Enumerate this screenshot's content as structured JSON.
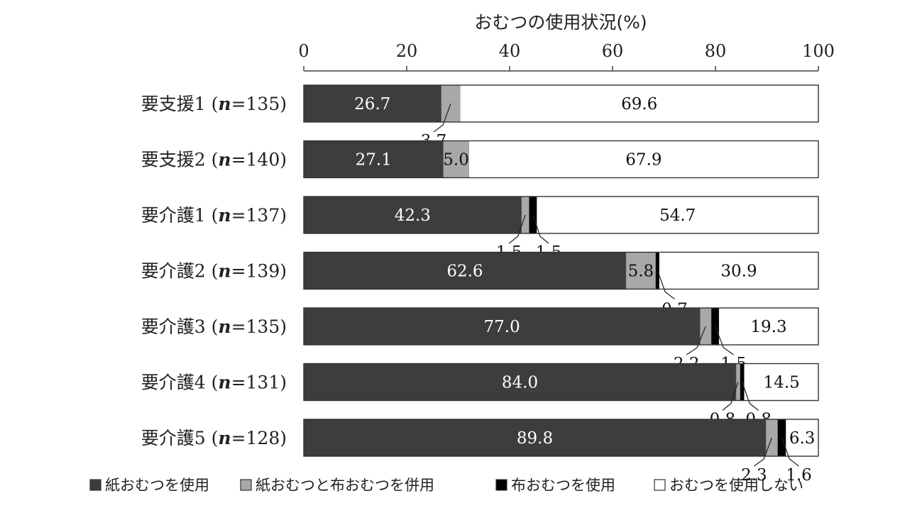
{
  "chart_data": {
    "type": "bar",
    "orientation": "horizontal",
    "stacked": true,
    "title": "おむつの使用状況(%)",
    "xlim": [
      0,
      100
    ],
    "x_ticks": [
      "0",
      "20",
      "40",
      "60",
      "80",
      "100"
    ],
    "categories": [
      "要支援1 (n=135)",
      "要支援2 (n=140)",
      "要介護1 (n=137)",
      "要介護2 (n=139)",
      "要介護3 (n=135)",
      "要介護4 (n=131)",
      "要介護5 (n=128)"
    ],
    "series": [
      {
        "name": "紙おむつを使用",
        "color": "#3d3d3d",
        "values": [
          26.7,
          27.1,
          42.3,
          62.6,
          77.0,
          84.0,
          89.8
        ]
      },
      {
        "name": "紙おむつと布おむつを併用",
        "color": "#a8a8a8",
        "values": [
          3.7,
          5.0,
          1.5,
          5.8,
          2.2,
          0.8,
          2.3
        ]
      },
      {
        "name": "布おむつを使用",
        "color": "#000000",
        "values": [
          0.0,
          0.0,
          1.5,
          0.7,
          1.5,
          0.8,
          1.6
        ]
      },
      {
        "name": "おむつを使用しない",
        "color": "#ffffff",
        "values": [
          69.6,
          67.9,
          54.7,
          30.9,
          19.3,
          14.5,
          6.3
        ]
      }
    ],
    "data_labels": [
      [
        "26.7",
        "3.7",
        "",
        "69.6"
      ],
      [
        "27.1",
        "5.0",
        "",
        "67.9"
      ],
      [
        "42.3",
        "1.5",
        "1.5",
        "54.7"
      ],
      [
        "62.6",
        "5.8",
        "0.7",
        "30.9"
      ],
      [
        "77.0",
        "2.2",
        "1.5",
        "19.3"
      ],
      [
        "84.0",
        "0.8",
        "0.8",
        "14.5"
      ],
      [
        "89.8",
        "2.3",
        "1.6",
        "6.3"
      ]
    ],
    "legend": "bottom"
  }
}
